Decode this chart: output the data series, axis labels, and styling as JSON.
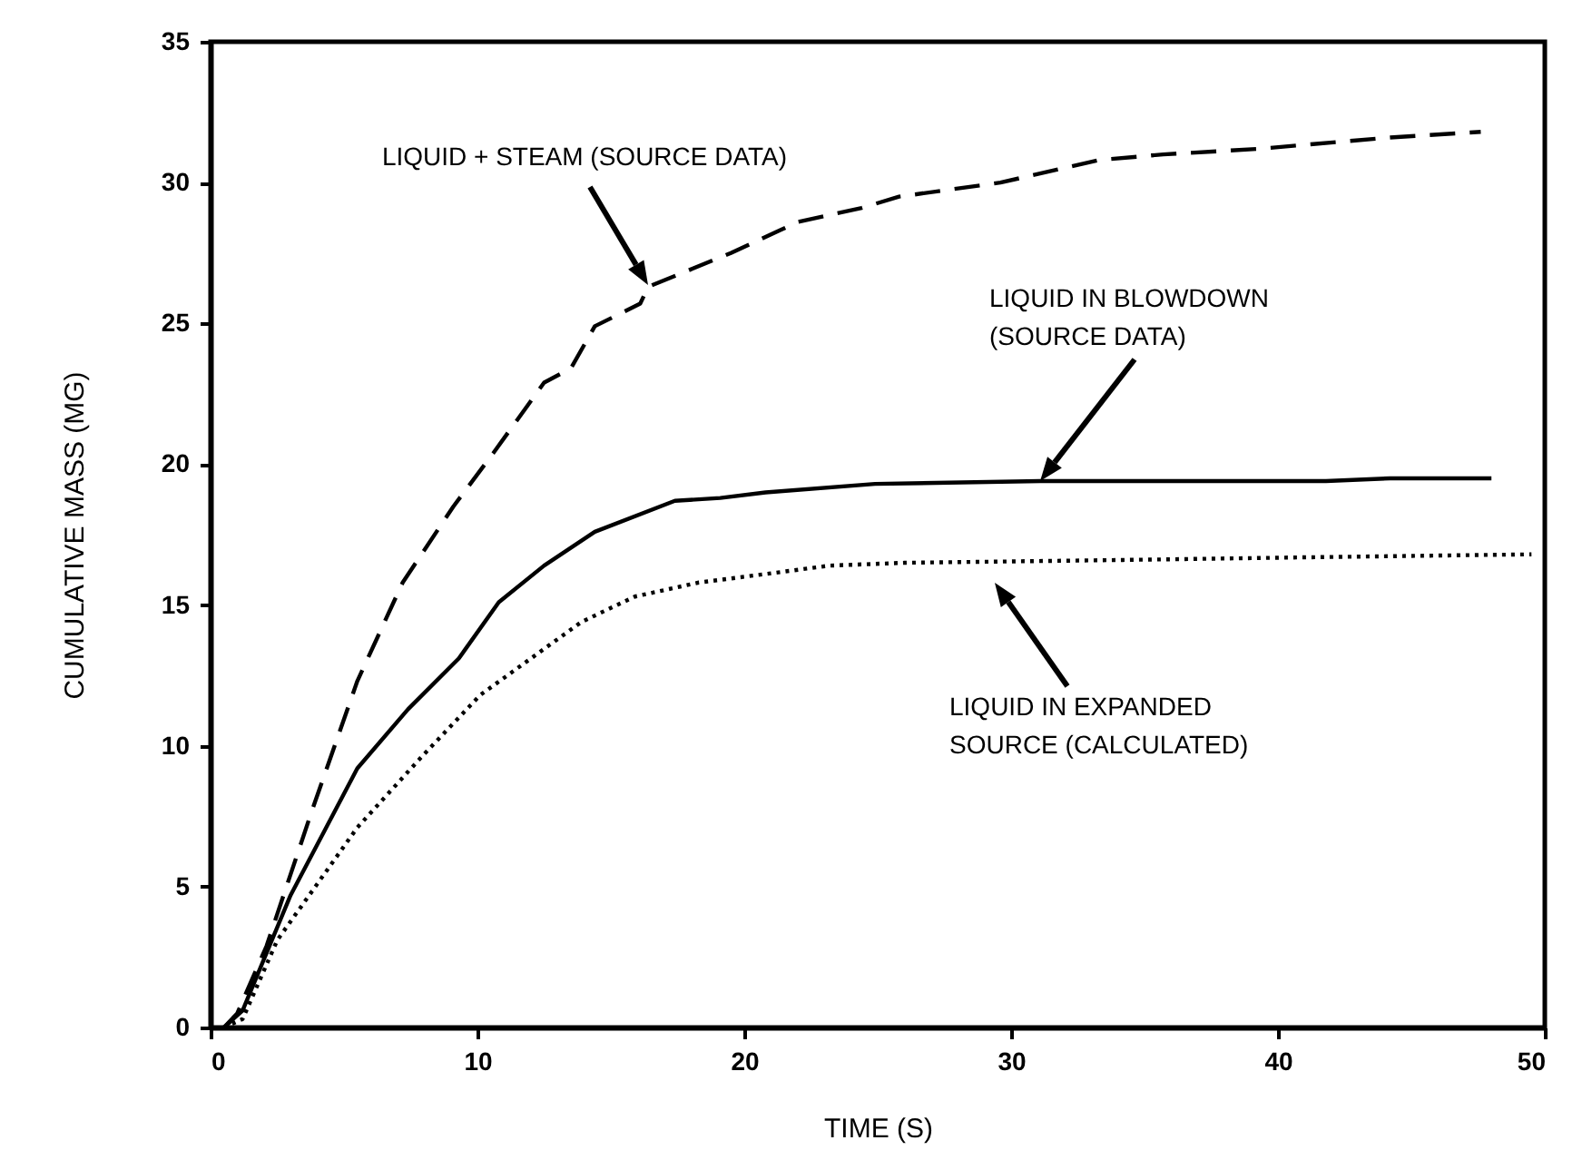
{
  "chart_data": {
    "type": "line",
    "xlabel": "TIME (S)",
    "ylabel": "CUMULATIVE MASS (MG)",
    "xlim": [
      0,
      50
    ],
    "xticks": [
      0,
      10,
      20,
      30,
      40,
      50
    ],
    "ylim": [
      0,
      35
    ],
    "yticks": [
      0,
      5,
      10,
      15,
      20,
      25,
      30,
      35
    ],
    "grid": false,
    "marker": "none",
    "series": [
      {
        "color": "#000000",
        "line_style": "dashed",
        "x": [
          0.5,
          1,
          2.1,
          3.8,
          5.5,
          7.2,
          9.1,
          10.6,
          12.5,
          13.5,
          14.4,
          16.1,
          16.4,
          19.5,
          22,
          24.4,
          25.8,
          29.6,
          33.3,
          35.7,
          39.3,
          44.2,
          47.6
        ],
        "values": [
          0,
          0.5,
          2.9,
          7.7,
          12.3,
          15.8,
          18.5,
          20.4,
          22.9,
          23.4,
          24.9,
          25.7,
          26.3,
          27.5,
          28.6,
          29.1,
          29.5,
          30.0,
          30.8,
          31.0,
          31.2,
          31.6,
          31.8
        ]
      },
      {
        "color": "#000000",
        "line_style": "solid",
        "x": [
          0.5,
          1.2,
          3,
          5.5,
          7.4,
          9.3,
          10.8,
          12.5,
          14.4,
          17.4,
          19.1,
          20.8,
          24.9,
          31.1,
          41.8,
          44.2,
          48
        ],
        "values": [
          0,
          0.6,
          4.7,
          9.2,
          11.3,
          13.1,
          15.1,
          16.4,
          17.6,
          18.7,
          18.8,
          19.0,
          19.3,
          19.4,
          19.4,
          19.5,
          19.5
        ]
      },
      {
        "color": "#000000",
        "line_style": "dotted",
        "x": [
          0.5,
          1.2,
          2.5,
          5.5,
          7.9,
          10.1,
          12,
          13.9,
          15.9,
          18.3,
          20.8,
          23.2,
          26,
          34.2,
          41.5,
          49.5
        ],
        "values": [
          0,
          0.3,
          3.1,
          7.1,
          9.6,
          11.8,
          13.1,
          14.4,
          15.3,
          15.8,
          16.1,
          16.4,
          16.5,
          16.6,
          16.7,
          16.8
        ]
      }
    ],
    "annotations": [
      "LIQUID + STEAM (SOURCE DATA)",
      "LIQUID IN BLOWDOWN\n(SOURCE DATA)",
      "LIQUID IN EXPANDED\nSOURCE (CALCULATED)"
    ]
  }
}
